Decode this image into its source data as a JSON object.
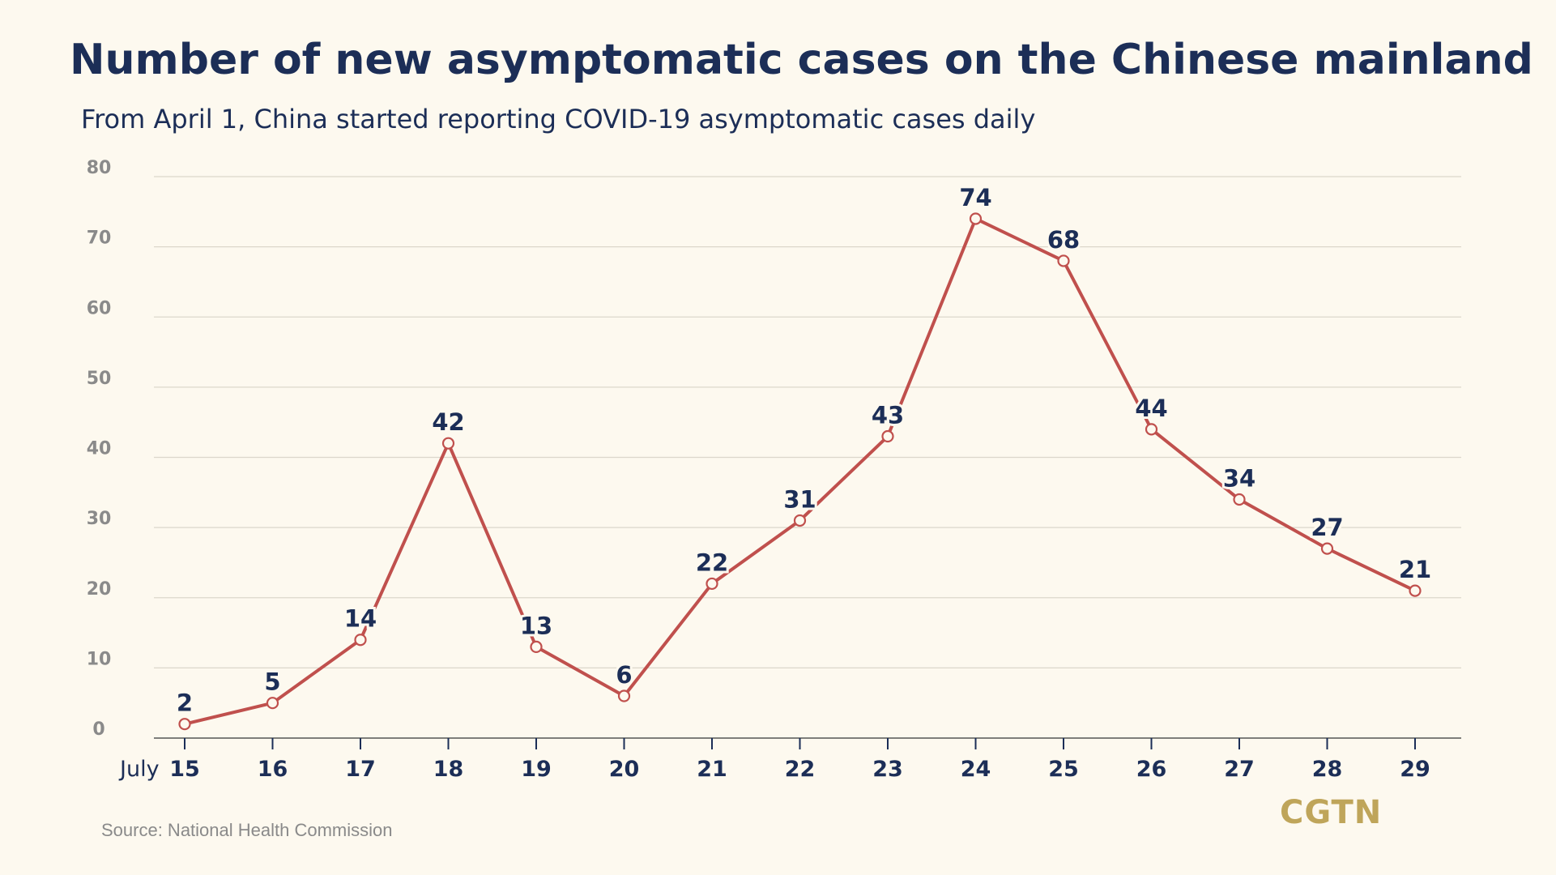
{
  "chart_data": {
    "type": "line",
    "title": "Number of new asymptomatic cases on the Chinese mainland",
    "subtitle": "From April 1, China started reporting COVID-19 asymptomatic cases daily",
    "x_prefix": "July",
    "categories": [
      "15",
      "16",
      "17",
      "18",
      "19",
      "20",
      "21",
      "22",
      "23",
      "24",
      "25",
      "26",
      "27",
      "28",
      "29"
    ],
    "values": [
      2,
      5,
      14,
      42,
      13,
      6,
      22,
      31,
      43,
      74,
      68,
      44,
      34,
      27,
      21
    ],
    "ylim": [
      0,
      80
    ],
    "yticks": [
      0,
      10,
      20,
      30,
      40,
      50,
      60,
      70,
      80
    ],
    "grid": true,
    "line_color": "#c0504d",
    "label_color": "#1c2e57",
    "source": "Source: National Health Commission"
  },
  "brand": {
    "logo": "CGTN"
  }
}
